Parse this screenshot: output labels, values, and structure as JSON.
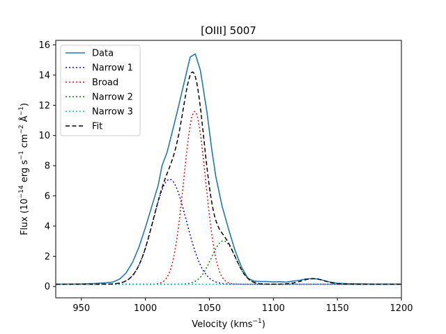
{
  "chart_data": {
    "type": "line",
    "title": "[OIII] 5007",
    "xlabel_base": "Velocity (kms",
    "xlabel_sup": "−1",
    "xlabel_close": ")",
    "ylabel_parts": {
      "a": "Flux (10",
      "a_sup": "−14",
      "b": " erg s",
      "b_sup": "−1",
      "c": " cm",
      "c_sup": "−2",
      "d": " Å",
      "d_sup": "−1",
      "e": ")"
    },
    "xlim": [
      930,
      1200
    ],
    "ylim": [
      -0.75,
      16.3
    ],
    "x_ticks": [
      950,
      1000,
      1050,
      1100,
      1150,
      1200
    ],
    "y_ticks": [
      0,
      2,
      4,
      6,
      8,
      10,
      12,
      14,
      16
    ],
    "legend_position": "top-left",
    "series": [
      {
        "name": "Data",
        "color": "#1f77b4",
        "style": "solid",
        "x": [
          930,
          950,
          960,
          970,
          975,
          980,
          985,
          990,
          995,
          1000,
          1005,
          1010,
          1013,
          1017,
          1020,
          1025,
          1030,
          1035,
          1039,
          1043,
          1048,
          1052,
          1055,
          1060,
          1065,
          1070,
          1075,
          1080,
          1085,
          1090,
          1095,
          1100,
          1105,
          1110,
          1115,
          1120,
          1125,
          1130,
          1135,
          1140,
          1145,
          1150,
          1160,
          1170,
          1180,
          1190,
          1200
        ],
        "y": [
          0.15,
          0.17,
          0.2,
          0.25,
          0.3,
          0.5,
          0.9,
          1.6,
          2.6,
          3.9,
          5.3,
          6.7,
          8.0,
          8.9,
          9.9,
          11.6,
          13.4,
          15.2,
          15.4,
          14.3,
          11.6,
          9.0,
          7.3,
          5.3,
          3.8,
          2.4,
          1.3,
          0.55,
          0.35,
          0.33,
          0.33,
          0.3,
          0.32,
          0.28,
          0.35,
          0.4,
          0.5,
          0.52,
          0.5,
          0.38,
          0.28,
          0.22,
          0.18,
          0.17,
          0.16,
          0.16,
          0.16
        ]
      },
      {
        "name": "Narrow 1",
        "color": "#0000ff",
        "style": "dotted",
        "center": 1019,
        "amplitude": 6.95,
        "sigma": 13,
        "baseline": 0.15
      },
      {
        "name": "Broad",
        "color": "#ff0000",
        "style": "dotted",
        "center": 1038.5,
        "amplitude": 11.45,
        "sigma": 8.5,
        "baseline": 0.15
      },
      {
        "name": "Narrow 2",
        "color": "#008000",
        "style": "dotted",
        "center": 1061,
        "amplitude": 2.87,
        "sigma": 9.5,
        "baseline": 0.15
      },
      {
        "name": "Narrow 3",
        "color": "#00bfbf",
        "style": "dotted",
        "center": 1132,
        "amplitude": 0.0,
        "sigma": 10,
        "baseline": 0.15
      },
      {
        "name": "Fit",
        "color": "#000000",
        "style": "dashed",
        "components": [
          "Narrow 1",
          "Broad",
          "Narrow 2"
        ],
        "extra_bump": {
          "center": 1131,
          "amplitude": 0.37,
          "sigma": 9
        },
        "baseline": 0.15
      }
    ]
  }
}
